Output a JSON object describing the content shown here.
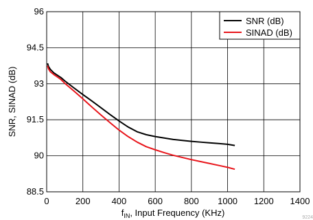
{
  "chart_data": {
    "type": "line",
    "xlabel_main": "f",
    "xlabel_sub": "IN",
    "xlabel_rest": ", Input Frequency (KHz)",
    "ylabel": "SNR, SINAD (dB)",
    "xlim": [
      0,
      1400
    ],
    "ylim": [
      88.5,
      96
    ],
    "xticks": [
      0,
      200,
      400,
      600,
      800,
      1000,
      1200,
      1400
    ],
    "yticks": [
      88.5,
      90,
      91.5,
      93,
      94.5,
      96
    ],
    "ytick_labels": [
      "88.5",
      "90",
      "91.5",
      "93",
      "94.5",
      "96"
    ],
    "grid": true,
    "legend_position": "top-right",
    "series": [
      {
        "name": "SNR (dB)",
        "color": "#000000",
        "x": [
          5,
          10,
          20,
          40,
          60,
          80,
          100,
          150,
          200,
          250,
          300,
          350,
          400,
          450,
          500,
          550,
          600,
          650,
          700,
          750,
          800,
          850,
          900,
          950,
          1000,
          1040
        ],
        "y": [
          93.85,
          93.72,
          93.6,
          93.45,
          93.35,
          93.25,
          93.12,
          92.83,
          92.55,
          92.28,
          92.0,
          91.72,
          91.45,
          91.2,
          91.0,
          90.88,
          90.8,
          90.74,
          90.68,
          90.64,
          90.6,
          90.57,
          90.54,
          90.51,
          90.48,
          90.43
        ]
      },
      {
        "name": "SINAD (dB)",
        "color": "#e8141a",
        "x": [
          5,
          10,
          20,
          40,
          60,
          80,
          100,
          150,
          200,
          250,
          300,
          350,
          400,
          450,
          500,
          550,
          600,
          650,
          700,
          750,
          800,
          850,
          900,
          950,
          1000,
          1040
        ],
        "y": [
          93.75,
          93.62,
          93.5,
          93.38,
          93.28,
          93.17,
          93.02,
          92.7,
          92.37,
          92.03,
          91.7,
          91.38,
          91.07,
          90.8,
          90.57,
          90.38,
          90.25,
          90.13,
          90.02,
          89.93,
          89.84,
          89.76,
          89.68,
          89.6,
          89.52,
          89.44
        ]
      }
    ]
  },
  "corner_code": "9224"
}
